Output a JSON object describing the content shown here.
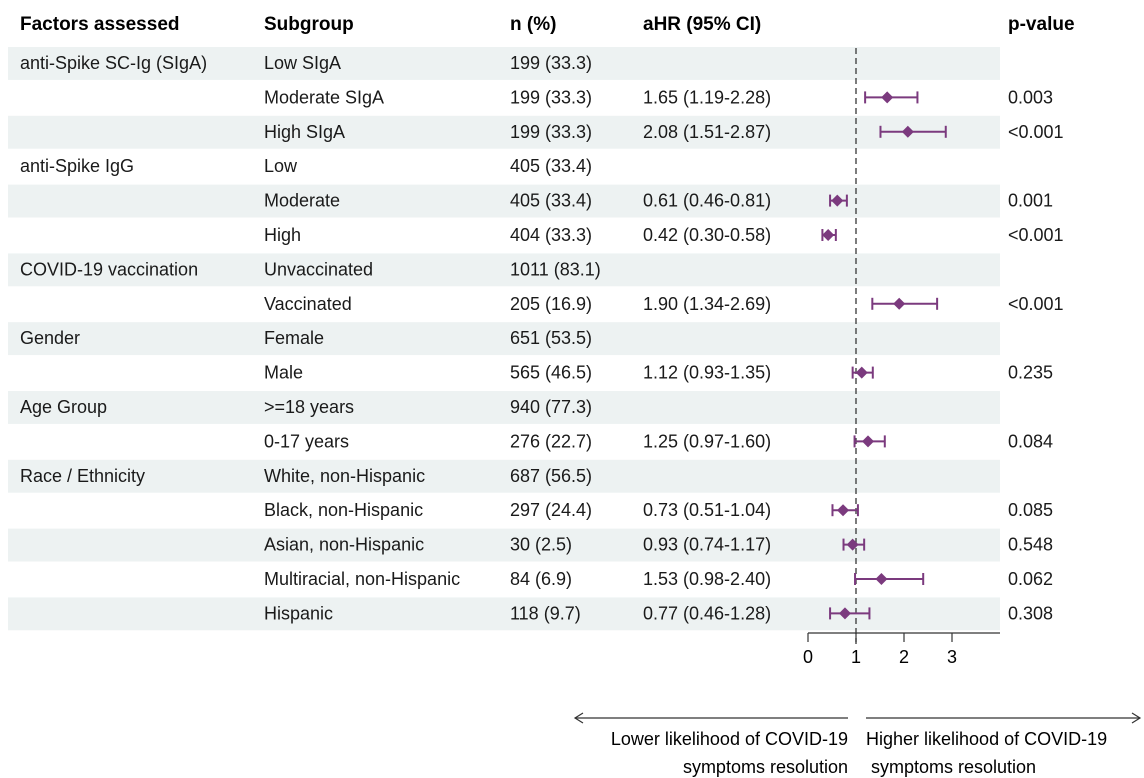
{
  "header": {
    "factors": "Factors assessed",
    "subgroup": "Subgroup",
    "n": "n (%)",
    "ahr": "aHR (95% CI)",
    "pvalue": "p-value"
  },
  "colors": {
    "marker": "#7B3A7E",
    "stripe": "#EDF2F2",
    "text": "#1a1a1a"
  },
  "rows": [
    {
      "factor": "anti-Spike SC-Ig (SIgA)",
      "subgroup": "Low SIgA",
      "n": "199 (33.3)",
      "ahr_text": "",
      "p": ""
    },
    {
      "factor": "",
      "subgroup": "Moderate SIgA",
      "n": "199 (33.3)",
      "ahr_text": "1.65 (1.19-2.28)",
      "p": "0.003"
    },
    {
      "factor": "",
      "subgroup": "High SIgA",
      "n": "199 (33.3)",
      "ahr_text": "2.08 (1.51-2.87)",
      "p": "<0.001"
    },
    {
      "factor": "anti-Spike IgG",
      "subgroup": "Low",
      "n": "405 (33.4)",
      "ahr_text": "",
      "p": ""
    },
    {
      "factor": "",
      "subgroup": "Moderate",
      "n": "405 (33.4)",
      "ahr_text": "0.61 (0.46-0.81)",
      "p": "0.001"
    },
    {
      "factor": "",
      "subgroup": "High",
      "n": "404 (33.3)",
      "ahr_text": "0.42 (0.30-0.58)",
      "p": "<0.001"
    },
    {
      "factor": "COVID-19 vaccination",
      "subgroup": "Unvaccinated",
      "n": "1011 (83.1)",
      "ahr_text": "",
      "p": ""
    },
    {
      "factor": "",
      "subgroup": "Vaccinated",
      "n": "205 (16.9)",
      "ahr_text": "1.90 (1.34-2.69)",
      "p": "<0.001"
    },
    {
      "factor": "Gender",
      "subgroup": "Female",
      "n": "651 (53.5)",
      "ahr_text": "",
      "p": ""
    },
    {
      "factor": "",
      "subgroup": "Male",
      "n": "565 (46.5)",
      "ahr_text": "1.12 (0.93-1.35)",
      "p": "0.235"
    },
    {
      "factor": "Age Group",
      "subgroup": ">=18 years",
      "n": "940 (77.3)",
      "ahr_text": "",
      "p": ""
    },
    {
      "factor": "",
      "subgroup": "0-17 years",
      "n": "276 (22.7)",
      "ahr_text": "1.25 (0.97-1.60)",
      "p": "0.084"
    },
    {
      "factor": "Race / Ethnicity",
      "subgroup": "White, non-Hispanic",
      "n": "687 (56.5)",
      "ahr_text": "",
      "p": ""
    },
    {
      "factor": "",
      "subgroup": "Black, non-Hispanic",
      "n": "297 (24.4)",
      "ahr_text": "0.73 (0.51-1.04)",
      "p": "0.085"
    },
    {
      "factor": "",
      "subgroup": "Asian, non-Hispanic",
      "n": "30 (2.5)",
      "ahr_text": "0.93 (0.74-1.17)",
      "p": "0.548"
    },
    {
      "factor": "",
      "subgroup": "Multiracial, non-Hispanic",
      "n": "84 (6.9)",
      "ahr_text": "1.53 (0.98-2.40)",
      "p": "0.062"
    },
    {
      "factor": "",
      "subgroup": "Hispanic",
      "n": "118 (9.7)",
      "ahr_text": "0.77 (0.46-1.28)",
      "p": "0.308"
    }
  ],
  "chart_data": {
    "type": "forest",
    "x_ticks": [
      0,
      1,
      2,
      3
    ],
    "xlim": [
      0,
      3
    ],
    "reference_line": 1,
    "points": [
      {
        "label": "Moderate SIgA",
        "est": 1.65,
        "lo": 1.19,
        "hi": 2.28
      },
      {
        "label": "High SIgA",
        "est": 2.08,
        "lo": 1.51,
        "hi": 2.87
      },
      {
        "label": "Moderate",
        "est": 0.61,
        "lo": 0.46,
        "hi": 0.81
      },
      {
        "label": "High",
        "est": 0.42,
        "lo": 0.3,
        "hi": 0.58
      },
      {
        "label": "Vaccinated",
        "est": 1.9,
        "lo": 1.34,
        "hi": 2.69
      },
      {
        "label": "Male",
        "est": 1.12,
        "lo": 0.93,
        "hi": 1.35
      },
      {
        "label": "0-17 years",
        "est": 1.25,
        "lo": 0.97,
        "hi": 1.6
      },
      {
        "label": "Black, non-Hispanic",
        "est": 0.73,
        "lo": 0.51,
        "hi": 1.04
      },
      {
        "label": "Asian, non-Hispanic",
        "est": 0.93,
        "lo": 0.74,
        "hi": 1.17
      },
      {
        "label": "Multiracial, non-Hispanic",
        "est": 1.53,
        "lo": 0.98,
        "hi": 2.4
      },
      {
        "label": "Hispanic",
        "est": 0.77,
        "lo": 0.46,
        "hi": 1.28
      }
    ],
    "left_arrow_label": [
      "Lower likelihood of COVID-19",
      "symptoms resolution"
    ],
    "right_arrow_label": [
      "Higher likelihood of COVID-19",
      "symptoms resolution"
    ]
  }
}
